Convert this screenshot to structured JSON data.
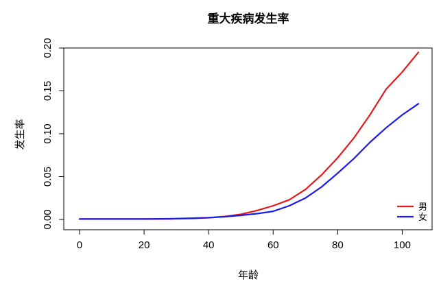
{
  "chart_data": {
    "type": "line",
    "title": "重大疾病发生率",
    "xlabel": "年龄",
    "ylabel": "发生率",
    "xlim": [
      0,
      105
    ],
    "ylim": [
      0,
      0.2
    ],
    "xticks": [
      "0",
      "20",
      "40",
      "60",
      "80",
      "100"
    ],
    "yticks": [
      "0.00",
      "0.05",
      "0.10",
      "0.15",
      "0.20"
    ],
    "grid": false,
    "legend_position": "bottom-right",
    "series": [
      {
        "name": "男",
        "color": "#e31a1c",
        "x": [
          0,
          10,
          20,
          28,
          35,
          40,
          45,
          50,
          55,
          60,
          65,
          70,
          75,
          80,
          85,
          90,
          95,
          100,
          105
        ],
        "y": [
          0.0005,
          0.0005,
          0.0005,
          0.0007,
          0.0012,
          0.002,
          0.0035,
          0.006,
          0.0105,
          0.016,
          0.023,
          0.035,
          0.052,
          0.072,
          0.095,
          0.122,
          0.152,
          0.172,
          0.195
        ]
      },
      {
        "name": "女",
        "color": "#1a1aee",
        "x": [
          0,
          10,
          20,
          28,
          35,
          40,
          45,
          50,
          55,
          60,
          65,
          70,
          75,
          80,
          85,
          90,
          95,
          100,
          105
        ],
        "y": [
          0.0005,
          0.0005,
          0.0005,
          0.0008,
          0.0015,
          0.0022,
          0.0032,
          0.0048,
          0.0068,
          0.0095,
          0.016,
          0.025,
          0.038,
          0.054,
          0.071,
          0.09,
          0.107,
          0.122,
          0.135
        ]
      }
    ]
  }
}
